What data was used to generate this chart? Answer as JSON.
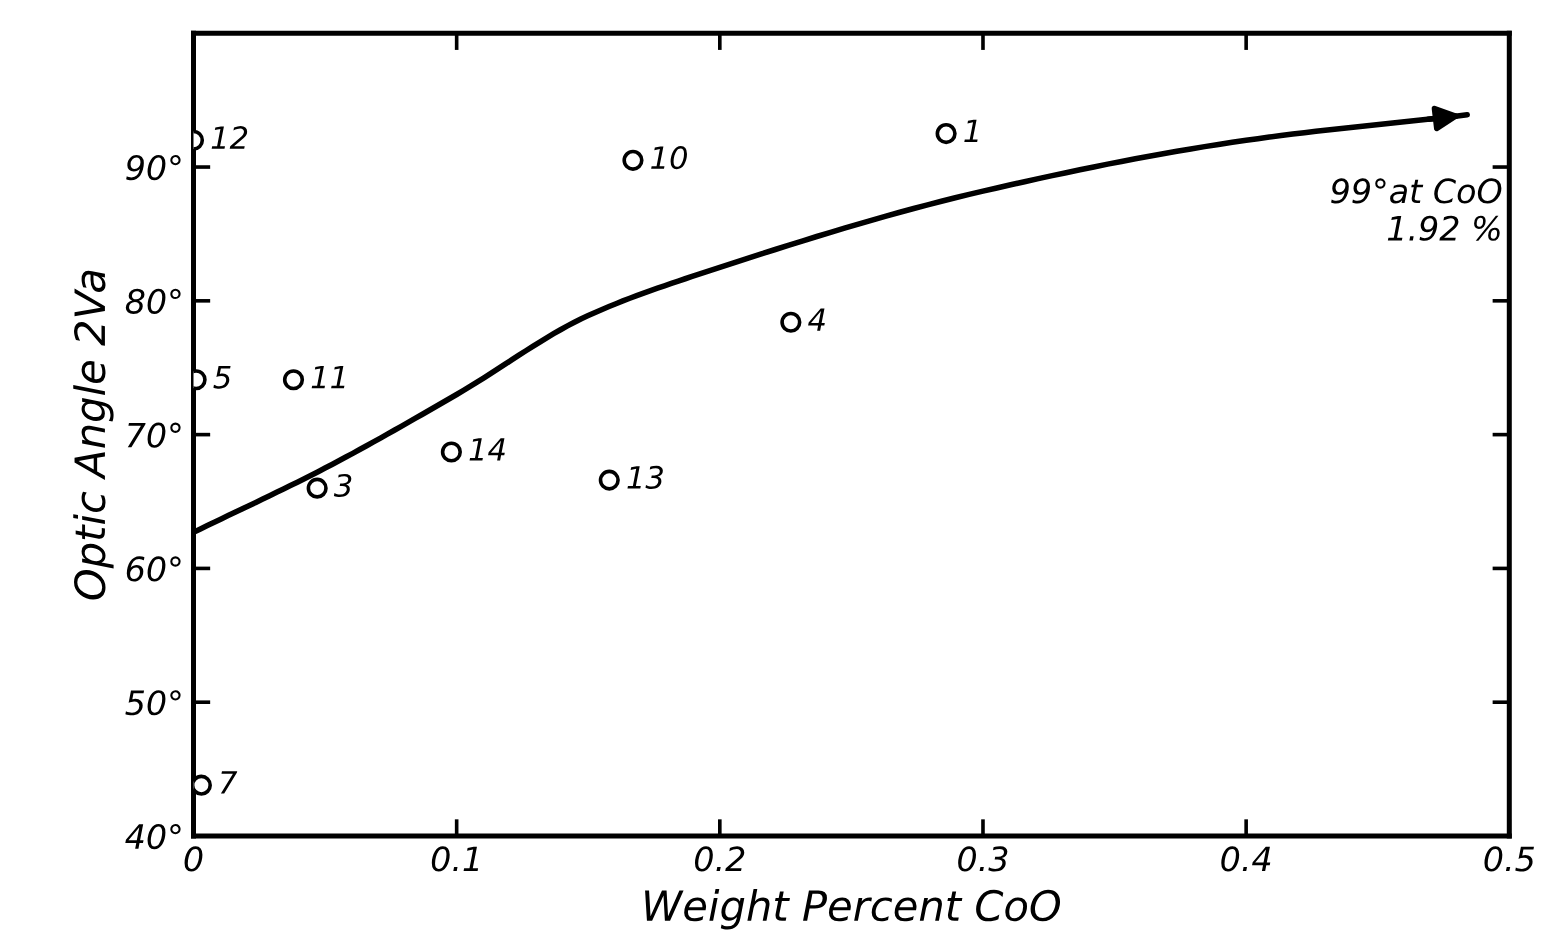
{
  "chart_data": {
    "type": "scatter",
    "xlabel": "Weight Percent CoO",
    "ylabel": "Optic Angle 2Va",
    "xlim": [
      0,
      0.5
    ],
    "ylim": [
      40,
      100
    ],
    "xticks": [
      0,
      0.1,
      0.2,
      0.3,
      0.4,
      0.5
    ],
    "yticks": [
      {
        "value": 40,
        "label": "40°"
      },
      {
        "value": 50,
        "label": "50°"
      },
      {
        "value": 60,
        "label": "60°"
      },
      {
        "value": 70,
        "label": "70°"
      },
      {
        "value": 80,
        "label": "80°"
      },
      {
        "value": 90,
        "label": "90°"
      },
      {
        "value": 100,
        "label": null
      }
    ],
    "grid": false,
    "legend": false,
    "series": [
      {
        "marker": "circle",
        "color": "#000000",
        "x": [
          0,
          0.167,
          0.286,
          0.227,
          0.001,
          0.038,
          0.098,
          0.158,
          0.047,
          0.003
        ],
        "values": [
          92.0,
          90.5,
          92.5,
          78.4,
          74.1,
          74.1,
          68.7,
          66.6,
          66.0,
          43.8
        ]
      },
      {
        "type": "line",
        "color": "#000000",
        "marker": "none",
        "line_style": "solid",
        "x": [
          0,
          0.05,
          0.1,
          0.15,
          0.2,
          0.3,
          0.4,
          0.484
        ],
        "values": [
          62.7,
          67.5,
          73.0,
          78.9,
          82.5,
          88.2,
          92.0,
          93.9
        ]
      }
    ],
    "annotations": [
      {
        "text": "12",
        "x": 0,
        "y": 92.0
      },
      {
        "text": "10",
        "x": 0.167,
        "y": 90.5
      },
      {
        "text": "1",
        "x": 0.286,
        "y": 92.5
      },
      {
        "text": "4",
        "x": 0.227,
        "y": 78.4
      },
      {
        "text": "5",
        "x": 0.001,
        "y": 74.1
      },
      {
        "text": "11",
        "x": 0.038,
        "y": 74.1
      },
      {
        "text": "14",
        "x": 0.098,
        "y": 68.7
      },
      {
        "text": "13",
        "x": 0.158,
        "y": 66.6
      },
      {
        "text": "3",
        "x": 0.047,
        "y": 66.0
      },
      {
        "text": "7",
        "x": 0.003,
        "y": 43.8
      },
      "99°at CoO\n1.92 %"
    ]
  }
}
